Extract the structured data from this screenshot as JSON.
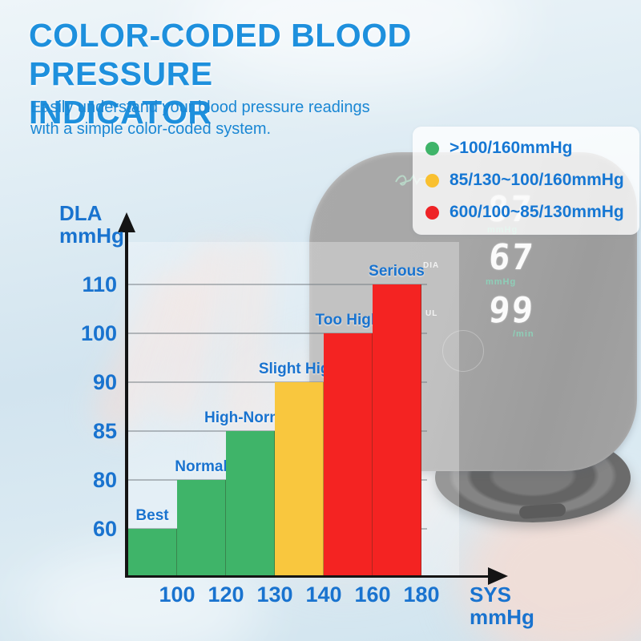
{
  "header": {
    "title_line1": "COLOR-CODED BLOOD PRESSURE",
    "title_line2": "INDICATOR",
    "subtitle_line1": "Easily understand your blood pressure readings",
    "subtitle_line2": "with a simple color-coded system."
  },
  "chart_data": {
    "type": "bar",
    "title": "COLOR-CODED BLOOD PRESSURE INDICATOR",
    "categories": [
      "Best",
      "Normal",
      "High-Normal",
      "Slight High",
      "Too High",
      "Serious"
    ],
    "values": [
      60,
      80,
      85,
      90,
      100,
      110
    ],
    "bar_colors": [
      "#3fb469",
      "#3fb469",
      "#3fb469",
      "#f9c73e",
      "#f42322",
      "#f42322"
    ],
    "x_tick_labels": [
      "100",
      "120",
      "130",
      "140",
      "160",
      "180"
    ],
    "y_tick_labels": [
      "60",
      "80",
      "85",
      "90",
      "100",
      "110"
    ],
    "xlabel": "SYS mmHg",
    "ylabel": "DLA mmHg",
    "axis_scale": "ordinal",
    "grid": "horizontal",
    "legend_position": "top-right",
    "legend": [
      {
        "color": "#3fb469",
        "label": ">100/160mmHg"
      },
      {
        "color": "#f9c030",
        "label": "85/130~100/160mmHg"
      },
      {
        "color": "#ee2326",
        "label": "600/100~85/130mmHg"
      }
    ]
  },
  "device": {
    "kind": "blood-pressure-monitor",
    "display": {
      "top_value": "87",
      "top_unit": "mmHg",
      "mid_value": "67",
      "mid_unit": "mmHg",
      "bottom_value": "99",
      "bottom_unit": "/min",
      "side_label_top": "DIA",
      "side_label_bottom": "UL"
    }
  },
  "colors": {
    "title_blue": "#1e90dd",
    "label_blue": "#1973cf",
    "green": "#3fb469",
    "yellow": "#f9c73e",
    "red": "#f42322",
    "axis_black": "#141414",
    "display_teal": "#8ecfb8"
  }
}
